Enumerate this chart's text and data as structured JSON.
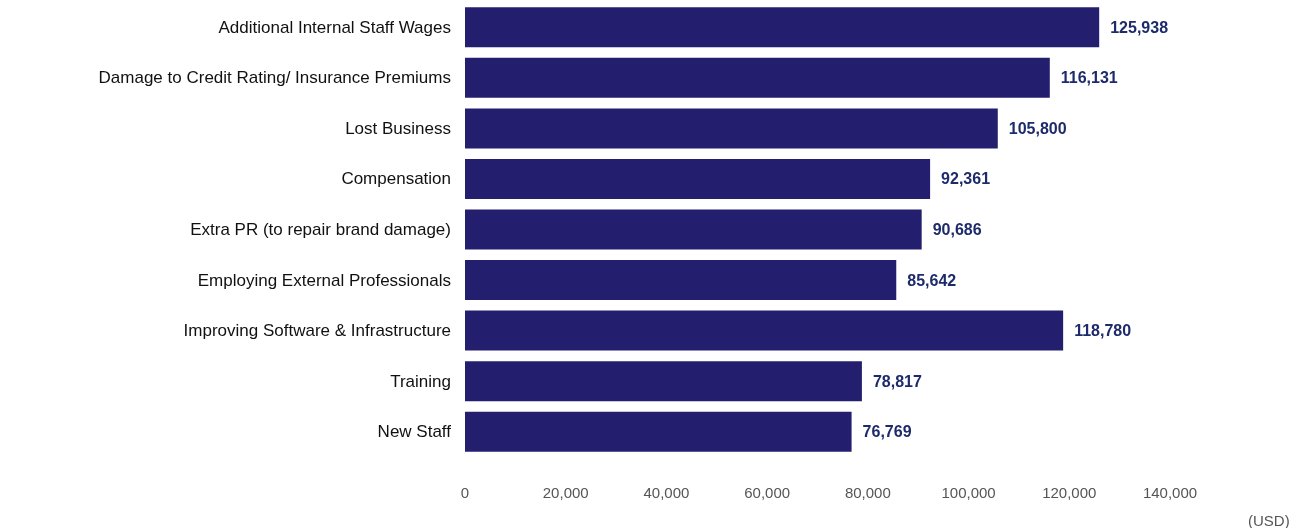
{
  "chart_data": {
    "type": "bar",
    "orientation": "horizontal",
    "xlabel": "(USD)",
    "categories": [
      "Additional Internal Staff Wages",
      "Damage to Credit Rating/ Insurance Premiums",
      "Lost Business",
      "Compensation",
      "Extra PR (to repair brand damage)",
      "Employing External Professionals",
      "Improving Software & Infrastructure",
      "Training",
      "New Staff"
    ],
    "values": [
      125938,
      116131,
      105800,
      92361,
      90686,
      85642,
      118780,
      78817,
      76769
    ],
    "color": "#231f6e",
    "xlim": [
      0,
      140000
    ],
    "xticks": [
      {
        "value": 0,
        "label": "0"
      },
      {
        "value": 20000,
        "label": "20,000"
      },
      {
        "value": 40000,
        "label": "40,000"
      },
      {
        "value": 60000,
        "label": "60,000"
      },
      {
        "value": 80000,
        "label": "80,000"
      },
      {
        "value": 100000,
        "label": "100,000"
      },
      {
        "value": 120000,
        "label": "120,000"
      },
      {
        "value": 140000,
        "label": "140,000"
      }
    ],
    "value_labels": [
      "125,938",
      "116,131",
      "105,800",
      "92,361",
      "90,686",
      "85,642",
      "118,780",
      "78,817",
      "76,769"
    ],
    "grid": false
  }
}
